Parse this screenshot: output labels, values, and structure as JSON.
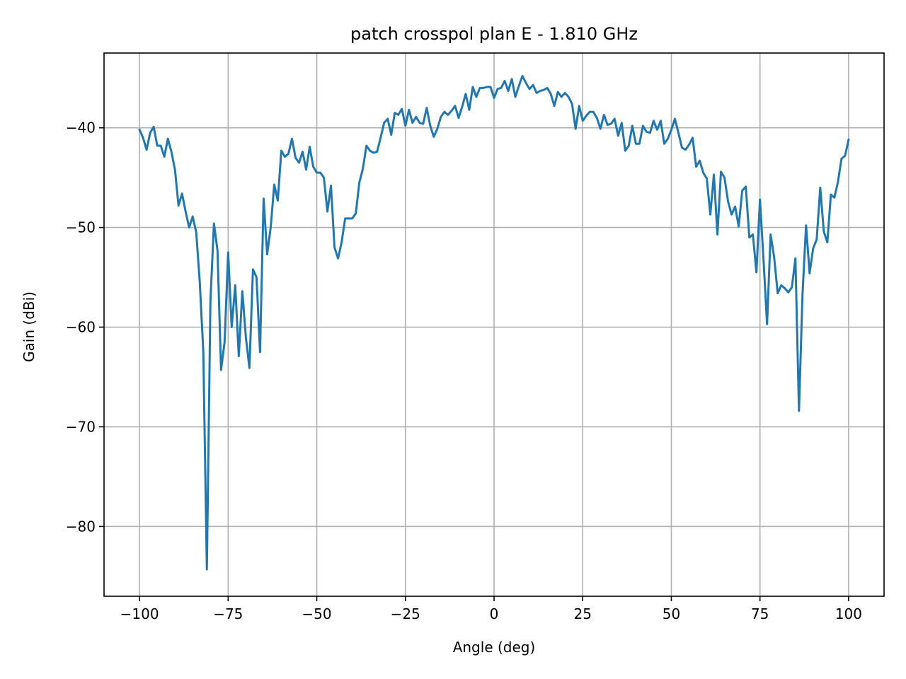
{
  "chart_data": {
    "type": "line",
    "title": "patch crosspol plan E - 1.810 GHz",
    "xlabel": "Angle (deg)",
    "ylabel": "Gain (dBi)",
    "xlim": [
      -110,
      110
    ],
    "ylim": [
      -87,
      -32.5
    ],
    "xticks": [
      -100,
      -75,
      -50,
      -25,
      0,
      25,
      50,
      75,
      100
    ],
    "yticks": [
      -80,
      -70,
      -60,
      -50,
      -40
    ],
    "xtick_labels": [
      "−100",
      "−75",
      "−50",
      "−25",
      "0",
      "25",
      "50",
      "75",
      "100"
    ],
    "ytick_labels": [
      "−80",
      "−70",
      "−60",
      "−50",
      "−40"
    ],
    "grid": true,
    "line_color": "#1f77b4",
    "series": [
      {
        "x": [
          -100,
          -99,
          -98,
          -97,
          -96,
          -95,
          -94,
          -93,
          -92,
          -91,
          -90,
          -89,
          -88,
          -87,
          -86,
          -85,
          -84,
          -83,
          -82,
          -81,
          -80,
          -79,
          -78,
          -77,
          -76,
          -75,
          -74,
          -73,
          -72,
          -71,
          -70,
          -69,
          -68,
          -67,
          -66,
          -65,
          -64,
          -63,
          -62,
          -61,
          -60,
          -59,
          -58,
          -57,
          -56,
          -55,
          -54,
          -53,
          -52,
          -51,
          -50,
          -49,
          -48,
          -47,
          -46,
          -45,
          -44,
          -43,
          -42,
          -41,
          -40,
          -39,
          -38,
          -37,
          -36,
          -35,
          -34,
          -33,
          -32,
          -31,
          -30,
          -29,
          -28,
          -27,
          -26,
          -25,
          -24,
          -23,
          -22,
          -21,
          -20,
          -19,
          -18,
          -17,
          -16,
          -15,
          -14,
          -13,
          -12,
          -11,
          -10,
          -9,
          -8,
          -7,
          -6,
          -5,
          -4,
          -3,
          -2,
          -1,
          0,
          1,
          2,
          3,
          4,
          5,
          6,
          7,
          8,
          9,
          10,
          11,
          12,
          13,
          14,
          15,
          16,
          17,
          18,
          19,
          20,
          21,
          22,
          23,
          24,
          25,
          26,
          27,
          28,
          29,
          30,
          31,
          32,
          33,
          34,
          35,
          36,
          37,
          38,
          39,
          40,
          41,
          42,
          43,
          44,
          45,
          46,
          47,
          48,
          49,
          50,
          51,
          52,
          53,
          54,
          55,
          56,
          57,
          58,
          59,
          60,
          61,
          62,
          63,
          64,
          65,
          66,
          67,
          68,
          69,
          70,
          71,
          72,
          73,
          74,
          75,
          76,
          77,
          78,
          79,
          80,
          81,
          82,
          83,
          84,
          85,
          86,
          87,
          88,
          89,
          90,
          91,
          92,
          93,
          94,
          95,
          96,
          97,
          98,
          99,
          100
        ],
        "y": [
          -40.2,
          -41,
          -42.2,
          -40.5,
          -39.9,
          -41.8,
          -41.8,
          -42.9,
          -41.1,
          -42.4,
          -44.2,
          -47.8,
          -46.6,
          -48.4,
          -50,
          -48.9,
          -50.5,
          -55.5,
          -62.5,
          -84.3,
          -57.4,
          -49.6,
          -52.3,
          -64.3,
          -61.5,
          -52.5,
          -60,
          -55.8,
          -62.9,
          -56.4,
          -61,
          -64.1,
          -54.2,
          -55,
          -62.5,
          -47.1,
          -52.7,
          -50,
          -45.7,
          -47.3,
          -42.3,
          -42.9,
          -42.6,
          -41.1,
          -43,
          -43.5,
          -42.4,
          -44.2,
          -41.9,
          -43.9,
          -44.5,
          -44.5,
          -45,
          -48.4,
          -45.8,
          -52,
          -53.1,
          -51.5,
          -49.1,
          -49.1,
          -49.1,
          -48.6,
          -45.5,
          -44.1,
          -41.8,
          -42.3,
          -42.5,
          -42.4,
          -41,
          -39.5,
          -39.1,
          -40.7,
          -38.5,
          -38.7,
          -38.1,
          -39.8,
          -38.2,
          -39.5,
          -38.9,
          -39.5,
          -39.6,
          -38,
          -39.8,
          -40.9,
          -40.1,
          -38.9,
          -38.4,
          -38.7,
          -38.3,
          -37.8,
          -39,
          -37.9,
          -36.6,
          -38.2,
          -35.9,
          -36.9,
          -36,
          -36,
          -35.9,
          -35.9,
          -37,
          -36.1,
          -36,
          -35.3,
          -36.3,
          -35.1,
          -36.9,
          -35.8,
          -34.8,
          -35.5,
          -36.1,
          -35.7,
          -36.5,
          -36.3,
          -36.2,
          -36,
          -36.6,
          -37.8,
          -36.4,
          -36.9,
          -36.5,
          -36.9,
          -37.6,
          -40.1,
          -37.8,
          -39.3,
          -38.8,
          -38.4,
          -38.4,
          -39,
          -40.1,
          -38.7,
          -39.7,
          -39.6,
          -39.1,
          -40.8,
          -39.5,
          -42.3,
          -41.8,
          -39.8,
          -41.6,
          -41.6,
          -39.8,
          -40.4,
          -40.5,
          -39.3,
          -40.2,
          -39.3,
          -41.6,
          -41.1,
          -40.2,
          -39.1,
          -40.5,
          -42,
          -42.2,
          -41.7,
          -41,
          -43.9,
          -43.3,
          -44.5,
          -45.1,
          -48.7,
          -44.7,
          -50.7,
          -44.4,
          -45,
          -47.4,
          -48.7,
          -47.9,
          -49.9,
          -46.3,
          -45.9,
          -51,
          -50.7,
          -54.5,
          -47.2,
          -53.2,
          -59.7,
          -50.7,
          -53,
          -56.6,
          -55.8,
          -56.1,
          -56.5,
          -56,
          -53.1,
          -68.4,
          -56.7,
          -49.8,
          -54.6,
          -52.1,
          -51.2,
          -46,
          -50.4,
          -51.5,
          -46.7,
          -47,
          -45.4,
          -43.1,
          -42.8,
          -41.2
        ]
      }
    ]
  }
}
